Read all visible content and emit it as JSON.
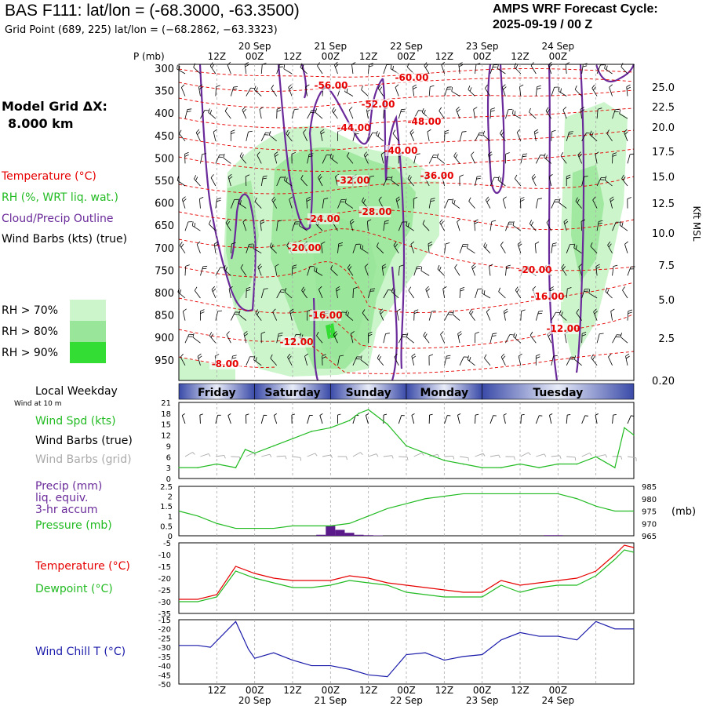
{
  "header": {
    "title": "BAS F111:  lat/lon = (-68.3000, -63.3500)",
    "grid_point": "Grid Point (689, 225) lat/lon = (−68.2862, −63.3323)",
    "cycle_line1": "AMPS WRF Forecast Cycle:",
    "cycle_line2": "2025-09-19 / 00  Z"
  },
  "left_panel": {
    "model_grid_label": "Model Grid ΔX:",
    "model_grid_value": "8.000 km",
    "legend_temperature": "Temperature (°C)",
    "legend_rh": "RH (%, WRT liq. wat.)",
    "legend_cloud": "Cloud/Precip Outline",
    "legend_wind": "Wind Barbs (kts) (true)",
    "rh_levels": [
      "RH > 70%",
      "RH > 80%",
      "RH > 90%"
    ],
    "local_weekday": "Local Weekday",
    "wind_at_10m": "Wind at 10 m",
    "wind_spd": "Wind Spd (kts)",
    "wind_barbs_true": "Wind Barbs (true)",
    "wind_barbs_grid": "Wind Barbs (grid)",
    "precip_line1": "Precip (mm)",
    "precip_line2": "liq. equiv.",
    "precip_line3": "3-hr accum",
    "pressure_label": "Pressure (mb)",
    "temperature_label": "Temperature (°C)",
    "dewpoint_label": "Dewpoint (°C)",
    "windchill_label": "Wind Chill T (°C)"
  },
  "colors": {
    "temp_red": "#e60000",
    "rh70": "#ccf5cc",
    "rh80": "#99e599",
    "rh90": "#33dd33",
    "cloud_purple": "#6a2a9a",
    "wind_green": "#22bb22",
    "barb_gray": "#aaaaaa",
    "windchill_blue": "#1a1aaa"
  },
  "time_axis": {
    "top_hours": [
      "12Z",
      "00Z",
      "12Z",
      "00Z",
      "12Z",
      "00Z",
      "12Z",
      "00Z",
      "12Z",
      "00Z"
    ],
    "dates": [
      "20 Sep",
      "21 Sep",
      "22 Sep",
      "23 Sep",
      "24 Sep"
    ],
    "p_label": "P (mb)",
    "weekdays": [
      "Friday",
      "Saturday",
      "Sunday",
      "Monday",
      "Tuesday"
    ]
  },
  "chart_data": [
    {
      "type": "heatmap",
      "name": "vertical cross-section",
      "pressure_ticks": [
        "300",
        "350",
        "400",
        "450",
        "500",
        "550",
        "600",
        "650",
        "700",
        "750",
        "800",
        "850",
        "900",
        "950"
      ],
      "height_ticks": [
        "25.0",
        "22.5",
        "20.0",
        "17.5",
        "15.0",
        "12.5",
        "10.0",
        "7.5",
        "5.0",
        "2.5",
        "0.20"
      ],
      "right_axis_label": "Kft MSL",
      "temperature_contour_labels": [
        "-56.00",
        "-60.00",
        "-52.00",
        "-48.00",
        "-44.00",
        "-40.00",
        "-36.00",
        "-32.00",
        "-28.00",
        "-24.00",
        "-20.00",
        "-20.00",
        "-16.00",
        "-16.00",
        "-12.00",
        "-12.00",
        "-8.00"
      ],
      "wind_barbs": "dense field of wind barbs at all levels and times",
      "rh_shading": [
        "RH > 70%",
        "RH > 80%",
        "RH > 90%"
      ]
    },
    {
      "type": "line",
      "name": "wind speed",
      "series_label": "Wind Spd (kts)",
      "y_ticks": [
        "0",
        "3",
        "6",
        "9",
        "12",
        "15",
        "18",
        "21"
      ],
      "ylim": [
        0,
        21
      ],
      "x_hours": [
        0,
        6,
        12,
        18,
        21,
        24,
        30,
        36,
        42,
        48,
        54,
        57,
        60,
        66,
        72,
        78,
        84,
        90,
        96,
        102,
        108,
        114,
        120,
        126,
        132,
        138,
        141,
        144
      ],
      "values": [
        3,
        3,
        4,
        3,
        8,
        7,
        9,
        11,
        13,
        14,
        16,
        18,
        19,
        15,
        9,
        7,
        5,
        4,
        3,
        3,
        4,
        3,
        4,
        4,
        6,
        3,
        14,
        12
      ]
    },
    {
      "type": "bar",
      "name": "precip and pressure",
      "precip_ticks": [
        "0",
        "0.5",
        "1",
        "1.5",
        "2",
        "2.5"
      ],
      "pressure_ticks": [
        "965",
        "970",
        "975",
        "980",
        "985"
      ],
      "pressure_unit": "(mb)",
      "precip_x_hours": [
        45,
        48,
        51,
        54,
        57,
        60,
        63,
        117,
        120
      ],
      "precip_mm": [
        0.05,
        0.5,
        0.3,
        0.15,
        0.05,
        0.03,
        0.02,
        0.03,
        0.03
      ],
      "pressure_x_hours": [
        0,
        6,
        12,
        18,
        24,
        30,
        36,
        42,
        48,
        54,
        60,
        66,
        72,
        78,
        84,
        90,
        96,
        102,
        108,
        114,
        120,
        126,
        132,
        138,
        144
      ],
      "pressure_mb": [
        975,
        973,
        970,
        968,
        968,
        968,
        969,
        969,
        969,
        970,
        973,
        976,
        978,
        980,
        981,
        982,
        982,
        982,
        982,
        982,
        982,
        980,
        977,
        975,
        975
      ]
    },
    {
      "type": "line",
      "name": "temperature and dewpoint",
      "y_ticks": [
        "-5",
        "-10",
        "-15",
        "-20",
        "-25",
        "-30",
        "-35"
      ],
      "ylim": [
        -35,
        -5
      ],
      "x_hours": [
        0,
        6,
        12,
        18,
        24,
        30,
        36,
        42,
        48,
        54,
        60,
        66,
        72,
        78,
        84,
        90,
        96,
        102,
        108,
        114,
        120,
        126,
        132,
        138,
        141,
        144
      ],
      "series": [
        {
          "name": "Temperature (°C)",
          "values": [
            -29,
            -29,
            -27,
            -15,
            -18,
            -20,
            -21,
            -21,
            -21,
            -19,
            -20,
            -22,
            -23,
            -24,
            -25,
            -26,
            -26,
            -21,
            -23,
            -22,
            -21,
            -20,
            -17,
            -10,
            -6,
            -7
          ]
        },
        {
          "name": "Dewpoint (°C)",
          "values": [
            -30,
            -30,
            -28,
            -17,
            -20,
            -22,
            -24,
            -24,
            -23,
            -21,
            -22,
            -23,
            -26,
            -27,
            -28,
            -28,
            -28,
            -23,
            -26,
            -24,
            -23,
            -23,
            -19,
            -12,
            -8,
            -9
          ]
        }
      ]
    },
    {
      "type": "line",
      "name": "wind chill",
      "series_label": "Wind Chill T (°C)",
      "y_ticks": [
        "-15",
        "-20",
        "-25",
        "-30",
        "-35",
        "-40",
        "-45",
        "-50"
      ],
      "ylim": [
        -50,
        -15
      ],
      "x_hours": [
        0,
        6,
        10,
        18,
        22,
        24,
        30,
        36,
        42,
        48,
        54,
        60,
        66,
        72,
        78,
        84,
        90,
        96,
        102,
        108,
        114,
        120,
        126,
        132,
        138,
        144
      ],
      "values": [
        -29,
        -29,
        -30,
        -16,
        -31,
        -36,
        -33,
        -37,
        -40,
        -40,
        -42,
        -45,
        -46,
        -34,
        -33,
        -37,
        -35,
        -34,
        -26,
        -22,
        -24,
        -24,
        -26,
        -16,
        -20,
        -20
      ]
    }
  ]
}
